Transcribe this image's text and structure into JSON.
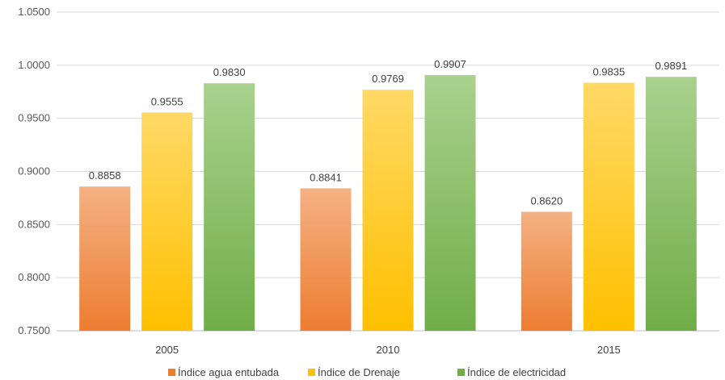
{
  "chart_data": {
    "type": "bar",
    "title": "",
    "xlabel": "",
    "ylabel": "",
    "categories": [
      "2005",
      "2010",
      "2015"
    ],
    "ylim": [
      0.75,
      1.05
    ],
    "yticks": [
      "0.7500",
      "0.8000",
      "0.8500",
      "0.9000",
      "0.9500",
      "1.0000",
      "1.0500"
    ],
    "ytick_values": [
      0.75,
      0.8,
      0.85,
      0.9,
      0.95,
      1.0,
      1.05
    ],
    "grid": true,
    "legend_position": "bottom",
    "series": [
      {
        "name": "Índice agua entubada",
        "values": [
          0.8858,
          0.8841,
          0.862
        ],
        "labels": [
          "0.8858",
          "0.8841",
          "0.8620"
        ],
        "color": "#ED7D31",
        "color_light": "#F4B183"
      },
      {
        "name": "Índice de Drenaje",
        "values": [
          0.9555,
          0.9769,
          0.9835
        ],
        "labels": [
          "0.9555",
          "0.9769",
          "0.9835"
        ],
        "color": "#FFC000",
        "color_light": "#FFD966"
      },
      {
        "name": "Índice de electricidad",
        "values": [
          0.983,
          0.9907,
          0.9891
        ],
        "labels": [
          "0.9830",
          "0.9907",
          "0.9891"
        ],
        "color": "#70AD47",
        "color_light": "#A9D18E"
      }
    ]
  }
}
